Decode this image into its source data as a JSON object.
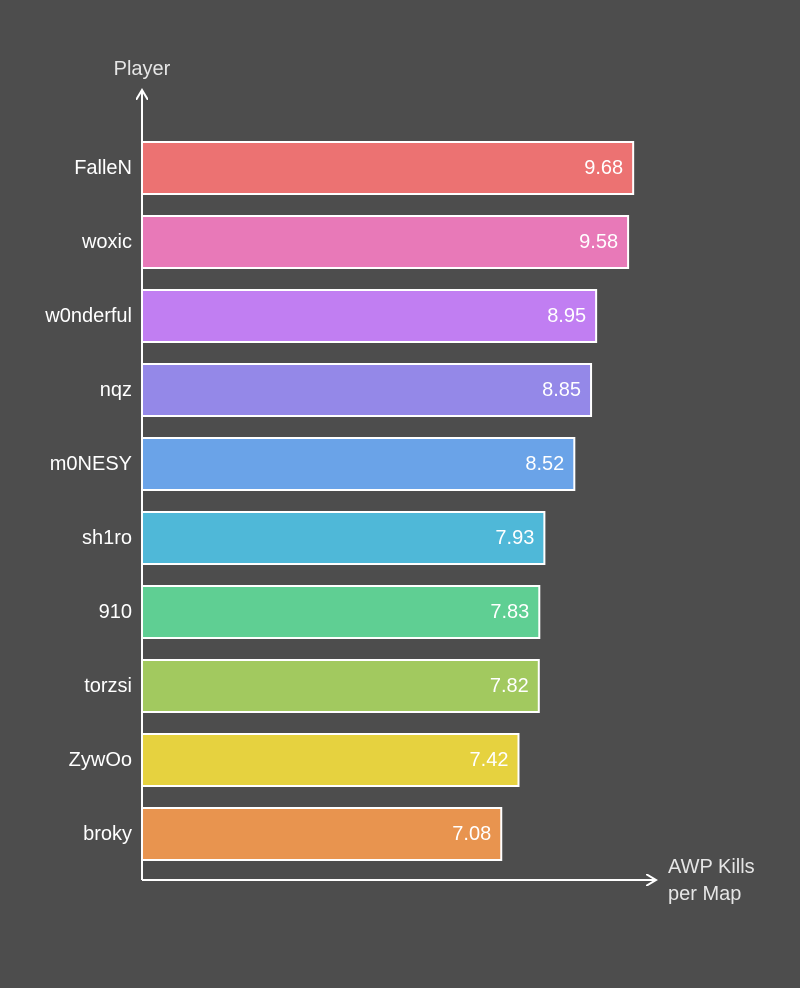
{
  "chart_data": {
    "type": "bar",
    "orientation": "horizontal",
    "title": "",
    "xlabel": "AWP Kills per Map",
    "xlabel_lines": [
      "AWP Kills",
      "per Map"
    ],
    "ylabel": "Player",
    "categories": [
      "FalleN",
      "woxic",
      "w0nderful",
      "nqz",
      "m0NESY",
      "sh1ro",
      "910",
      "torzsi",
      "ZywOo",
      "broky"
    ],
    "values": [
      9.68,
      9.58,
      8.95,
      8.85,
      8.52,
      7.93,
      7.83,
      7.82,
      7.42,
      7.08
    ],
    "value_labels": [
      "9.68",
      "9.58",
      "8.95",
      "8.85",
      "8.52",
      "7.93",
      "7.83",
      "7.82",
      "7.42",
      "7.08"
    ],
    "colors": [
      "#ec7272",
      "#e879b8",
      "#c17ef2",
      "#9488e8",
      "#6aa3e8",
      "#4fb8d8",
      "#5fcf93",
      "#a2c95f",
      "#e6d23f",
      "#e8944f"
    ],
    "xlim": [
      0,
      10.8
    ],
    "grid": false
  }
}
